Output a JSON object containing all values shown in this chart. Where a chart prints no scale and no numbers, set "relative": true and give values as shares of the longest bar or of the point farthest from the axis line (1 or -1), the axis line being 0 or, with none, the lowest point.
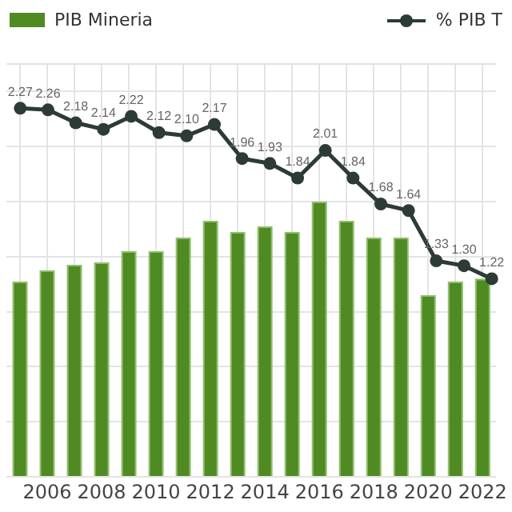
{
  "chart_data": [
    {
      "type": "bar",
      "relative": true,
      "categories": [
        null,
        "2006",
        null,
        "2008",
        null,
        "2010",
        null,
        "2012",
        null,
        "2014",
        null,
        "2016",
        null,
        "2018",
        null,
        "2020",
        null,
        "2022"
      ],
      "series": [
        {
          "name": "PIB Mineria",
          "color": "#4f8a22",
          "values": [
            0.71,
            0.75,
            0.77,
            0.78,
            0.82,
            0.82,
            0.87,
            0.93,
            0.89,
            0.91,
            0.89,
            1,
            0.93,
            0.87,
            0.87,
            0.66,
            0.71,
            0.72
          ]
        }
      ],
      "grid": true,
      "legend": "top left"
    },
    {
      "type": "line",
      "categories": [
        null,
        null,
        null,
        null,
        null,
        null,
        null,
        null,
        null,
        null,
        null,
        null,
        null,
        null,
        null,
        null,
        null,
        null
      ],
      "series": [
        {
          "name": "% PIB T",
          "color": "#2d3b35",
          "values": [
            2.27,
            2.26,
            2.18,
            2.14,
            2.22,
            2.12,
            2.1,
            2.17,
            1.96,
            1.93,
            1.84,
            2.01,
            1.84,
            1.68,
            1.64,
            1.33,
            1.3,
            1.22
          ],
          "value_labels": [
            "2.27",
            "2.26",
            "2.18",
            "2.14",
            "2.22",
            "2.12",
            "2.10",
            "2.17",
            "1.96",
            "1.93",
            "1.84",
            "2.01",
            "1.84",
            "1.68",
            "1.64",
            "1.33",
            "1.30",
            "1.22"
          ]
        }
      ],
      "marker": "circle",
      "legend": "top right"
    }
  ]
}
